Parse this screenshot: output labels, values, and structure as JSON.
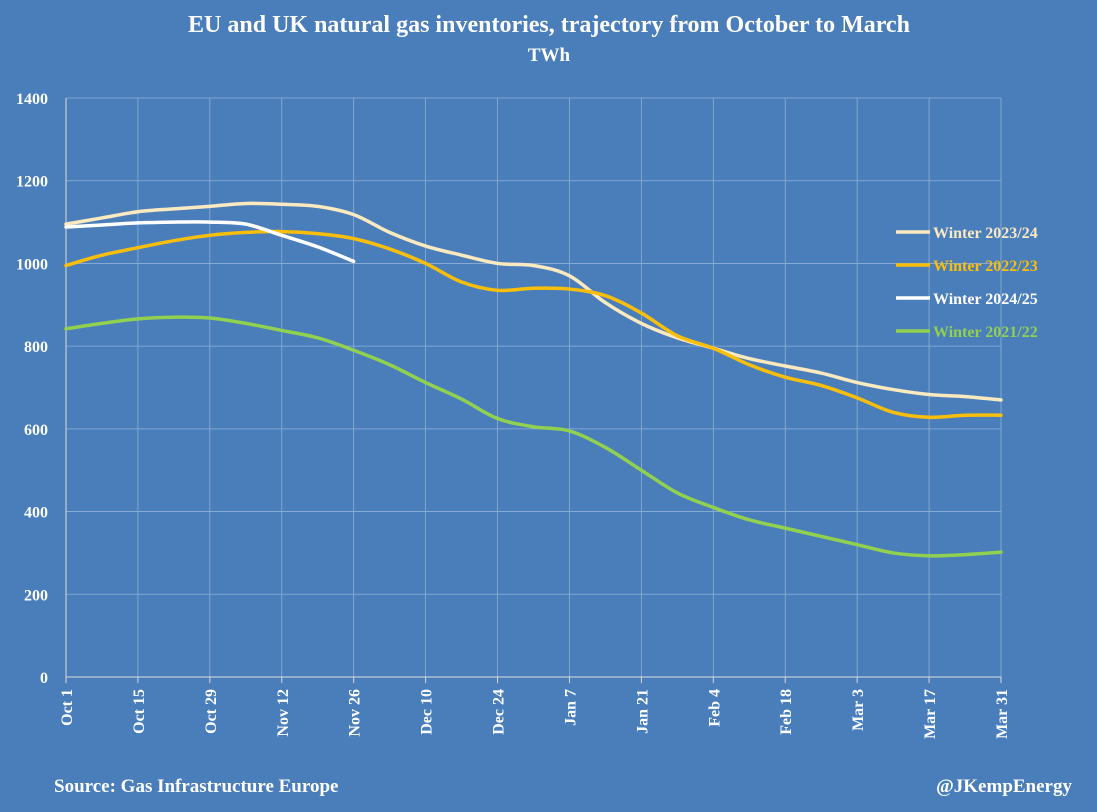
{
  "chart_data": {
    "type": "line",
    "title": "EU and UK natural gas inventories, trajectory from October to March",
    "subtitle": "TWh",
    "ylim": [
      0,
      1400
    ],
    "yticks": [
      0,
      200,
      400,
      600,
      800,
      1000,
      1200,
      1400
    ],
    "xlim": [
      0,
      182
    ],
    "xticks": [
      {
        "day": 0,
        "label": "Oct 1"
      },
      {
        "day": 14,
        "label": "Oct 15"
      },
      {
        "day": 28,
        "label": "Oct 29"
      },
      {
        "day": 42,
        "label": "Nov 12"
      },
      {
        "day": 56,
        "label": "Nov 26"
      },
      {
        "day": 70,
        "label": "Dec 10"
      },
      {
        "day": 84,
        "label": "Dec 24"
      },
      {
        "day": 98,
        "label": "Jan 7"
      },
      {
        "day": 112,
        "label": "Jan 21"
      },
      {
        "day": 126,
        "label": "Feb 4"
      },
      {
        "day": 140,
        "label": "Feb 18"
      },
      {
        "day": 154,
        "label": "Mar 3"
      },
      {
        "day": 168,
        "label": "Mar 17"
      },
      {
        "day": 182,
        "label": "Mar 31"
      }
    ],
    "grid": true,
    "legend_position": "right",
    "series": [
      {
        "name": "Winter 2023/24",
        "color": "#fbe9c0",
        "x": [
          0,
          7,
          14,
          21,
          28,
          35,
          42,
          49,
          56,
          63,
          70,
          77,
          84,
          91,
          98,
          105,
          112,
          119,
          126,
          133,
          140,
          147,
          154,
          161,
          168,
          175,
          182
        ],
        "y": [
          1095,
          1110,
          1125,
          1132,
          1138,
          1145,
          1143,
          1138,
          1118,
          1075,
          1042,
          1020,
          1000,
          995,
          970,
          905,
          855,
          820,
          795,
          770,
          752,
          735,
          712,
          695,
          683,
          678,
          670
        ]
      },
      {
        "name": "Winter 2022/23",
        "color": "#f9be0a",
        "x": [
          0,
          7,
          14,
          21,
          28,
          35,
          42,
          49,
          56,
          63,
          70,
          77,
          84,
          91,
          98,
          105,
          112,
          119,
          126,
          133,
          140,
          147,
          154,
          161,
          168,
          175,
          182
        ],
        "y": [
          995,
          1020,
          1038,
          1055,
          1068,
          1075,
          1077,
          1072,
          1060,
          1035,
          1000,
          955,
          935,
          940,
          938,
          922,
          880,
          825,
          795,
          755,
          725,
          705,
          675,
          640,
          628,
          633,
          633
        ]
      },
      {
        "name": "Winter 2024/25",
        "color": "#ffffff",
        "x": [
          0,
          7,
          14,
          21,
          28,
          35,
          42,
          49,
          56
        ],
        "y": [
          1088,
          1093,
          1098,
          1100,
          1100,
          1095,
          1068,
          1040,
          1005
        ]
      },
      {
        "name": "Winter 2021/22",
        "color": "#92d050",
        "x": [
          0,
          7,
          14,
          21,
          28,
          35,
          42,
          49,
          56,
          63,
          70,
          77,
          84,
          91,
          98,
          105,
          112,
          119,
          126,
          133,
          140,
          147,
          154,
          161,
          168,
          175,
          182
        ],
        "y": [
          842,
          855,
          866,
          870,
          868,
          855,
          838,
          820,
          790,
          755,
          712,
          672,
          625,
          605,
          595,
          555,
          500,
          445,
          410,
          380,
          360,
          340,
          320,
          300,
          293,
          296,
          302
        ]
      }
    ]
  },
  "footer": {
    "source": "Source: Gas Infrastructure Europe",
    "credit": "@JKempEnergy"
  }
}
